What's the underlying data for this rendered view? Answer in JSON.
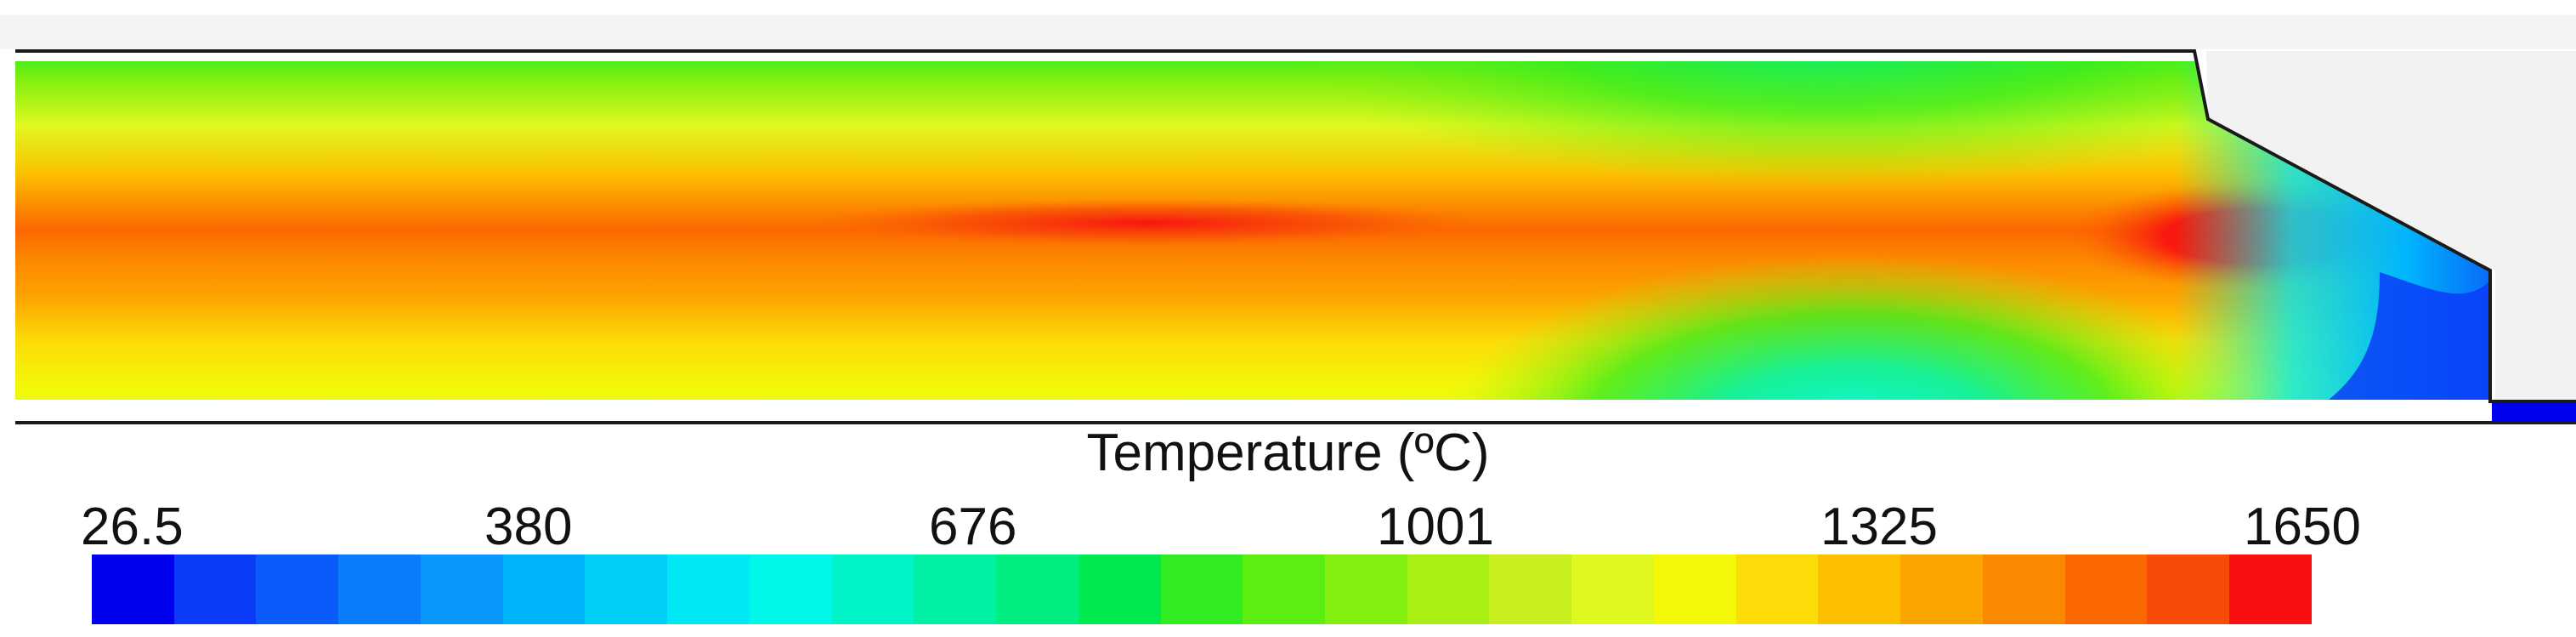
{
  "legend": {
    "title": "Temperature (ºC)",
    "ticks": [
      "26.5",
      "380",
      "676",
      "1001",
      "1325",
      "1650"
    ]
  },
  "colormap": [
    "#0000f0",
    "#0a3cf8",
    "#0a5cfa",
    "#0a7cfc",
    "#0a98fc",
    "#00b4fc",
    "#00d0f8",
    "#00e8f4",
    "#00f8e8",
    "#00f4c8",
    "#00f0a4",
    "#00ee80",
    "#00ea50",
    "#30ec20",
    "#5cee10",
    "#84f010",
    "#a8f014",
    "#c8f020",
    "#e0f820",
    "#f4f808",
    "#fcdc08",
    "#fcc000",
    "#fca400",
    "#fc8800",
    "#fc6800",
    "#f84a08",
    "#f81010"
  ]
}
